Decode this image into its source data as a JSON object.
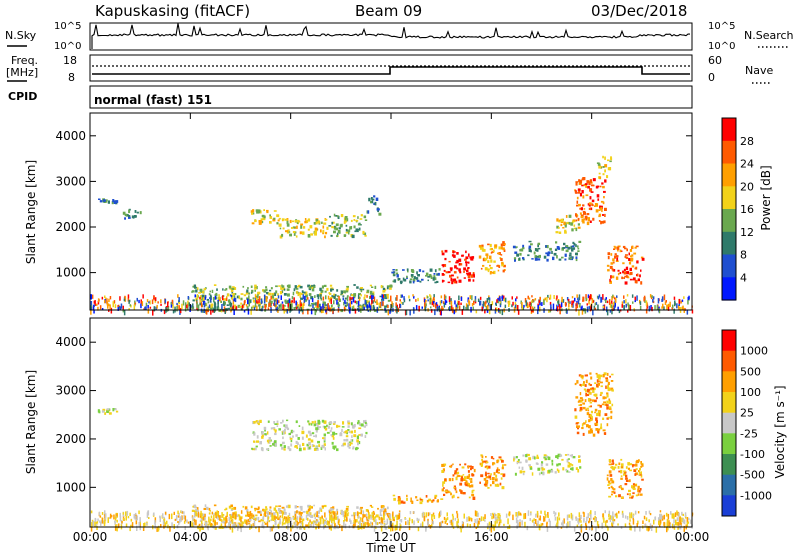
{
  "header": {
    "station": "Kapuskasing (fitACF)",
    "beam": "Beam 09",
    "date": "03/Dec/2018"
  },
  "top_panels": {
    "nsky_label": "N.Sky",
    "nsearch_label": "N.Search",
    "noise_tick_high": "10^5",
    "noise_tick_low": "10^0",
    "freq_label_line1": "Freq.",
    "freq_label_line2": "[MHz]",
    "freq_ticks": [
      "18",
      "8"
    ],
    "nave_label": "Nave",
    "nave_ticks": [
      "60",
      "0"
    ],
    "cpid_label": "CPID",
    "cpid_text": "normal (fast) 151"
  },
  "time_axis": {
    "ticks": [
      "00:00",
      "04:00",
      "08:00",
      "12:00",
      "16:00",
      "20:00",
      "00:00"
    ],
    "label": "Time UT"
  },
  "chart_data": [
    {
      "type": "heatmap",
      "panel": "power",
      "ylabel": "Slant Range [km]",
      "yticks": [
        "1000",
        "2000",
        "3000",
        "4000"
      ],
      "ylim": [
        180,
        4500
      ],
      "xlim_hours": [
        0,
        24
      ],
      "colorbar": {
        "label": "Power [dB]",
        "ticks": [
          "4",
          "8",
          "12",
          "16",
          "20",
          "24",
          "28"
        ],
        "colors": [
          "#0018ff",
          "#1f4fd0",
          "#2f7a6a",
          "#6aa84f",
          "#f2d21a",
          "#ff9f00",
          "#ff5a00",
          "#ff0000"
        ]
      },
      "regions": [
        {
          "t": [
            0.3,
            1.1
          ],
          "r": [
            2550,
            2650
          ],
          "level": 2
        },
        {
          "t": [
            1.3,
            2.0
          ],
          "r": [
            2200,
            2400
          ],
          "level": 2
        },
        {
          "t": [
            6.4,
            7.5
          ],
          "r": [
            2100,
            2400
          ],
          "level": 4
        },
        {
          "t": [
            7.5,
            9.5
          ],
          "r": [
            1800,
            2200
          ],
          "level": 4
        },
        {
          "t": [
            9.5,
            11.0
          ],
          "r": [
            1800,
            2300
          ],
          "level": 3
        },
        {
          "t": [
            11.0,
            11.5
          ],
          "r": [
            2300,
            2700
          ],
          "level": 2
        },
        {
          "t": [
            14.0,
            15.3
          ],
          "r": [
            800,
            1500
          ],
          "level": 7
        },
        {
          "t": [
            15.5,
            16.5
          ],
          "r": [
            1000,
            1700
          ],
          "level": 5
        },
        {
          "t": [
            16.8,
            19.5
          ],
          "r": [
            1300,
            1700
          ],
          "level": 2
        },
        {
          "t": [
            18.5,
            19.5
          ],
          "r": [
            1900,
            2300
          ],
          "level": 4
        },
        {
          "t": [
            19.3,
            20.5
          ],
          "r": [
            2100,
            3100
          ],
          "level": 6
        },
        {
          "t": [
            20.2,
            20.8
          ],
          "r": [
            3100,
            3600
          ],
          "level": 4
        },
        {
          "t": [
            20.6,
            22.0
          ],
          "r": [
            800,
            1600
          ],
          "level": 6
        },
        {
          "t": [
            12.0,
            14.0
          ],
          "r": [
            800,
            1100
          ],
          "level": 2
        },
        {
          "t": [
            4.0,
            12.0
          ],
          "r": [
            180,
            750
          ],
          "level": 3
        }
      ]
    },
    {
      "type": "heatmap",
      "panel": "velocity",
      "ylabel": "Slant Range [km]",
      "yticks": [
        "1000",
        "2000",
        "3000",
        "4000"
      ],
      "ylim": [
        180,
        4500
      ],
      "xlim_hours": [
        0,
        24
      ],
      "colorbar": {
        "label": "Velocity [m s⁻¹]",
        "ticks": [
          "1000",
          "500",
          "100",
          "25",
          "-25",
          "-100",
          "-500",
          "-1000"
        ],
        "colors": [
          "#1a3fd6",
          "#2b6fa8",
          "#3d8f52",
          "#7ad03f",
          "#c8c8c8",
          "#f2d21a",
          "#ff9f00",
          "#ff5a00",
          "#ff0000"
        ]
      },
      "regions": [
        {
          "t": [
            0.3,
            1.1
          ],
          "r": [
            2550,
            2650
          ],
          "level": 4
        },
        {
          "t": [
            6.4,
            11.0
          ],
          "r": [
            1800,
            2400
          ],
          "level": 4
        },
        {
          "t": [
            12.0,
            14.0
          ],
          "r": [
            700,
            850
          ],
          "level": 6
        },
        {
          "t": [
            14.0,
            15.3
          ],
          "r": [
            800,
            1500
          ],
          "level": 6
        },
        {
          "t": [
            15.5,
            16.5
          ],
          "r": [
            1000,
            1700
          ],
          "level": 6
        },
        {
          "t": [
            16.8,
            19.5
          ],
          "r": [
            1300,
            1700
          ],
          "level": 4
        },
        {
          "t": [
            19.3,
            20.8
          ],
          "r": [
            2100,
            3400
          ],
          "level": 6
        },
        {
          "t": [
            20.6,
            22.0
          ],
          "r": [
            800,
            1600
          ],
          "level": 6
        },
        {
          "t": [
            4.0,
            12.0
          ],
          "r": [
            180,
            650
          ],
          "level": 5
        }
      ]
    }
  ],
  "colors": {
    "axis": "#000000",
    "background": "#ffffff"
  }
}
